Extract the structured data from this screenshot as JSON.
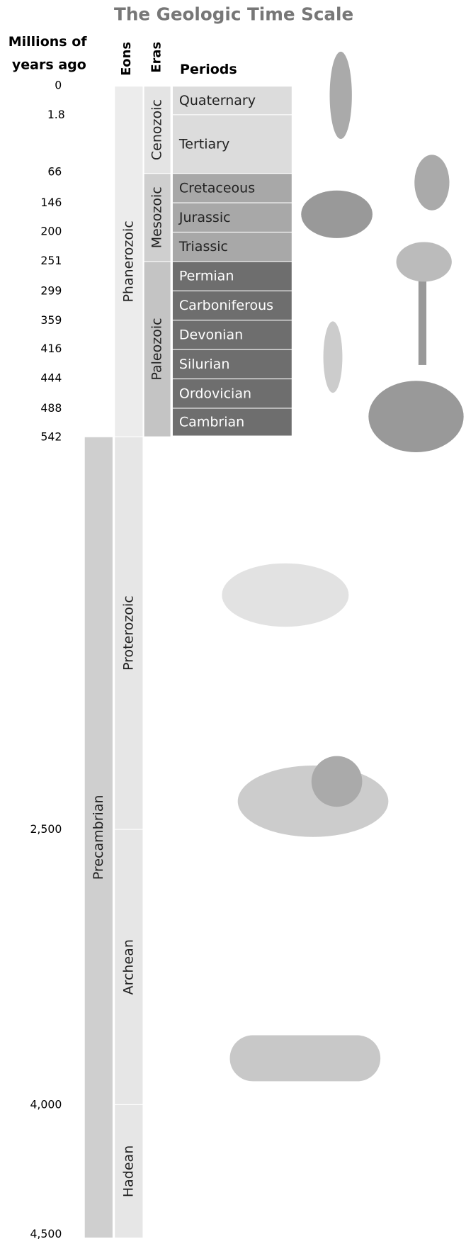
{
  "title": "The Geologic Time Scale",
  "header": {
    "time": [
      "Millions of",
      "years ago"
    ],
    "eons": "Eons",
    "eras": "Eras",
    "periods": "Periods"
  },
  "times": [
    "0",
    "1.8",
    "66",
    "146",
    "200",
    "251",
    "299",
    "359",
    "416",
    "444",
    "488",
    "542",
    "2,500",
    "4,000",
    "4,500"
  ],
  "eons": [
    "Phanerozoic",
    "Precambrian"
  ],
  "eras": [
    "Cenozoic",
    "Mesozoic",
    "Paleozoic",
    "Proterozoic",
    "Archean",
    "Hadean"
  ],
  "periods": [
    "Quaternary",
    "Tertiary",
    "Cretaceous",
    "Jurassic",
    "Triassic",
    "Permian",
    "Carboniferous",
    "Devonian",
    "Silurian",
    "Ordovician",
    "Cambrian"
  ]
}
